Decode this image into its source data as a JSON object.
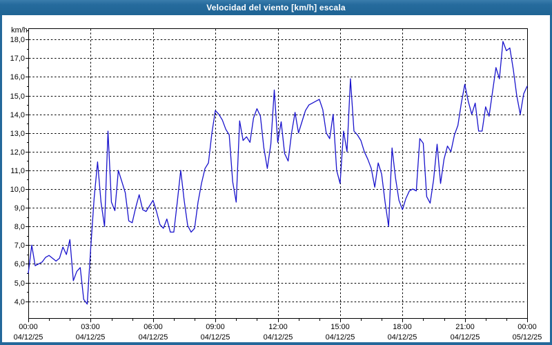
{
  "window": {
    "title": "Velocidad del viento [km/h] escala"
  },
  "chart_data": {
    "type": "line",
    "title": "Velocidad del viento [km/h] escala",
    "ylabel": "km/h",
    "series_name": "Velocidad del viento",
    "unit": "km/h",
    "line_color": "#1812cc",
    "grid": true,
    "legend": "none",
    "ylim": [
      3.1,
      18.6
    ],
    "y_ticks": [
      {
        "value": 4,
        "label": "4,0"
      },
      {
        "value": 5,
        "label": "5,0"
      },
      {
        "value": 6,
        "label": "6,0"
      },
      {
        "value": 7,
        "label": "7,0"
      },
      {
        "value": 8,
        "label": "8,0"
      },
      {
        "value": 9,
        "label": "9,0"
      },
      {
        "value": 10,
        "label": "10,0"
      },
      {
        "value": 11,
        "label": "11,0"
      },
      {
        "value": 12,
        "label": "12,0"
      },
      {
        "value": 13,
        "label": "13,0"
      },
      {
        "value": 14,
        "label": "14,0"
      },
      {
        "value": 15,
        "label": "15,0"
      },
      {
        "value": 16,
        "label": "16,0"
      },
      {
        "value": 17,
        "label": "17,0"
      },
      {
        "value": 18,
        "label": "18,0"
      }
    ],
    "x_ticks": [
      {
        "hour": 0,
        "time": "00:00",
        "date": "04/12/25"
      },
      {
        "hour": 3,
        "time": "03:00",
        "date": "04/12/25"
      },
      {
        "hour": 6,
        "time": "06:00",
        "date": "04/12/25"
      },
      {
        "hour": 9,
        "time": "09:00",
        "date": "04/12/25"
      },
      {
        "hour": 12,
        "time": "12:00",
        "date": "04/12/25"
      },
      {
        "hour": 15,
        "time": "15:00",
        "date": "04/12/25"
      },
      {
        "hour": 18,
        "time": "18:00",
        "date": "04/12/25"
      },
      {
        "hour": 21,
        "time": "21:00",
        "date": "04/12/25"
      },
      {
        "hour": 24,
        "time": "00:00",
        "date": "05/12/25"
      }
    ],
    "x_minor_tick_every_hours": 1,
    "x_start_hour": 0,
    "x_end_hour": 24,
    "sample_interval_minutes": 10,
    "values": [
      5.5,
      7.0,
      5.9,
      6.0,
      6.1,
      6.35,
      6.45,
      6.3,
      6.15,
      6.3,
      6.9,
      6.5,
      7.3,
      5.1,
      5.6,
      5.8,
      4.1,
      3.85,
      6.8,
      9.5,
      11.45,
      9.3,
      8.0,
      13.1,
      9.3,
      8.85,
      11.0,
      10.4,
      9.8,
      8.3,
      8.2,
      9.0,
      9.7,
      8.9,
      8.8,
      9.1,
      9.4,
      8.8,
      8.1,
      7.9,
      8.4,
      7.7,
      7.7,
      9.3,
      11.0,
      9.4,
      8.05,
      7.7,
      7.9,
      9.3,
      10.3,
      11.1,
      11.4,
      13.0,
      14.2,
      14.0,
      13.7,
      13.2,
      12.9,
      10.4,
      9.3,
      13.65,
      12.6,
      12.8,
      12.5,
      13.8,
      14.3,
      13.9,
      12.2,
      11.1,
      12.4,
      15.3,
      12.5,
      13.6,
      11.9,
      11.5,
      13.0,
      14.1,
      13.0,
      13.6,
      14.2,
      14.5,
      14.6,
      14.7,
      14.8,
      14.25,
      13.0,
      12.7,
      14.0,
      11.0,
      10.3,
      13.1,
      12.0,
      15.9,
      13.1,
      12.9,
      12.6,
      12.0,
      11.6,
      11.1,
      10.1,
      11.4,
      10.8,
      9.3,
      8.0,
      12.2,
      10.6,
      9.4,
      8.9,
      9.5,
      9.9,
      10.0,
      9.9,
      12.7,
      12.45,
      9.6,
      9.25,
      10.5,
      12.4,
      10.3,
      11.6,
      12.3,
      12.0,
      12.9,
      13.4,
      14.6,
      15.6,
      14.7,
      14.0,
      14.6,
      13.1,
      13.1,
      14.4,
      13.9,
      15.2,
      16.5,
      15.9,
      17.9,
      17.4,
      17.55,
      16.4,
      15.0,
      14.0,
      15.1,
      15.5
    ]
  }
}
